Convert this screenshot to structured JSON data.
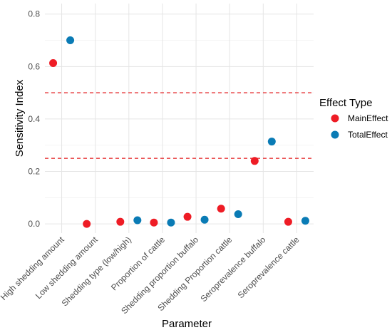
{
  "chart_data": {
    "type": "scatter",
    "title": "",
    "xlabel": "Parameter",
    "ylabel": "Sensitivity Index",
    "categories": [
      "High shedding amount",
      "Low shedding amount",
      "Shedding type (low/high)",
      "Proportion of cattle",
      "Shedding proportion buffalo",
      "Shedding Proportion cattle",
      "Seroprevalence buffalo",
      "Seroprevalence cattle"
    ],
    "ylim": [
      -0.035,
      0.84
    ],
    "yticks": [
      0.0,
      0.2,
      0.4,
      0.6,
      0.8
    ],
    "ytick_labels": [
      "0.0",
      "0.2",
      "0.4",
      "0.6",
      "0.8"
    ],
    "grid": true,
    "legend": {
      "title": "Effect Type",
      "position": "right"
    },
    "series": [
      {
        "name": "MainEffect",
        "color": "#ee1c25",
        "values": [
          0.613,
          0.0,
          0.008,
          0.005,
          0.027,
          0.058,
          0.24,
          0.008
        ]
      },
      {
        "name": "TotalEffect",
        "color": "#0a7bb5",
        "values": [
          0.7,
          null,
          0.014,
          0.005,
          0.016,
          0.037,
          0.314,
          0.012
        ]
      }
    ],
    "reference_lines": [
      {
        "y": 0.5,
        "style": "dashed",
        "color": "#e31a1c"
      },
      {
        "y": 0.25,
        "style": "dashed",
        "color": "#e31a1c"
      }
    ]
  }
}
